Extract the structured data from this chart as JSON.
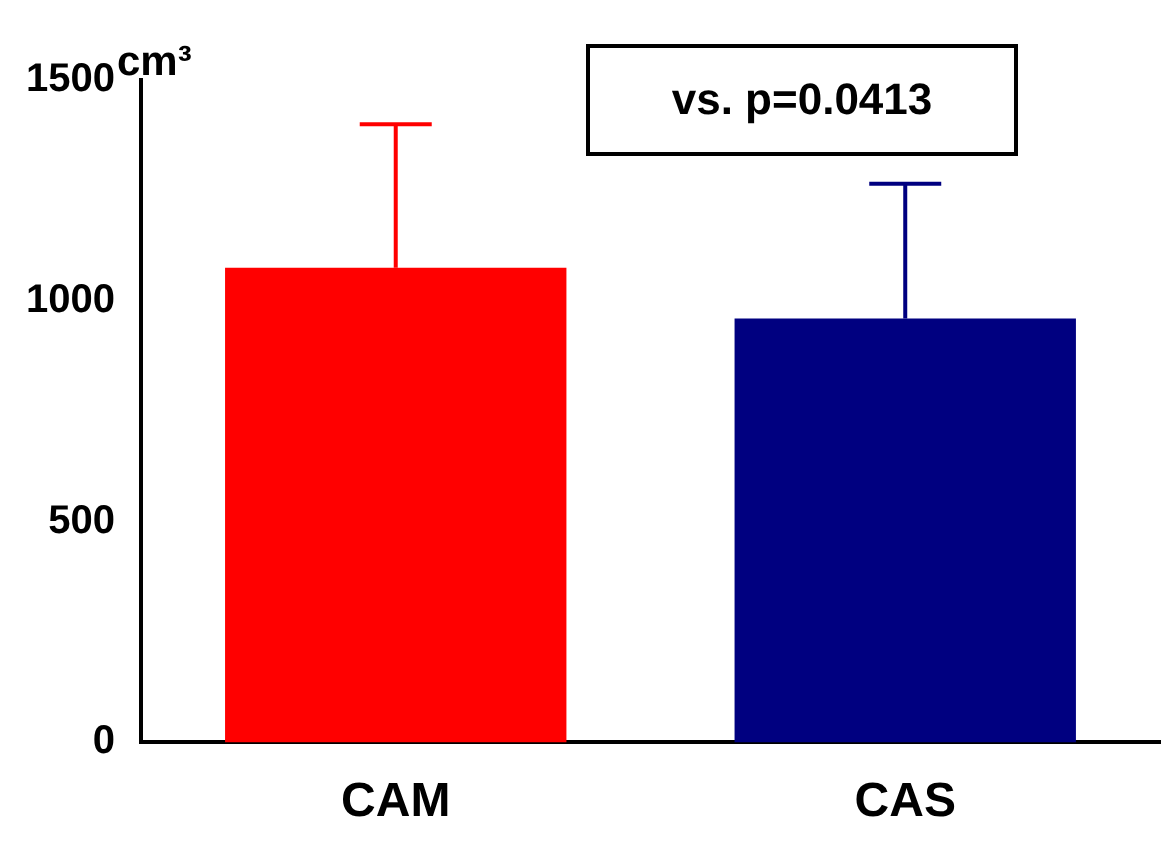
{
  "chart_data": {
    "type": "bar",
    "ylabel": "cm³",
    "categories": [
      "CAM",
      "CAS"
    ],
    "values": [
      1075,
      960
    ],
    "colors": [
      "#ff0000",
      "#000080"
    ],
    "errors": [
      [
        1075,
        1400
      ],
      [
        960,
        1265
      ]
    ],
    "ylim": [
      0,
      1500
    ],
    "yticks": [
      0,
      500,
      1000,
      1500
    ],
    "grid": false,
    "legend": false,
    "annotations": [
      "vs. p=0.0413"
    ]
  }
}
